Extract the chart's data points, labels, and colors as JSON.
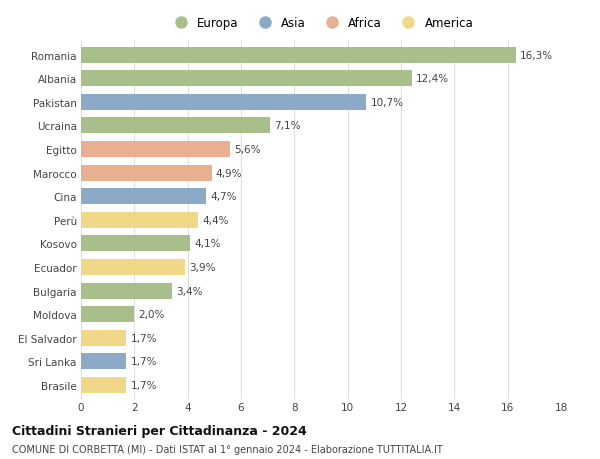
{
  "countries": [
    "Romania",
    "Albania",
    "Pakistan",
    "Ucraina",
    "Egitto",
    "Marocco",
    "Cina",
    "Perù",
    "Kosovo",
    "Ecuador",
    "Bulgaria",
    "Moldova",
    "El Salvador",
    "Sri Lanka",
    "Brasile"
  ],
  "values": [
    16.3,
    12.4,
    10.7,
    7.1,
    5.6,
    4.9,
    4.7,
    4.4,
    4.1,
    3.9,
    3.4,
    2.0,
    1.7,
    1.7,
    1.7
  ],
  "labels": [
    "16,3%",
    "12,4%",
    "10,7%",
    "7,1%",
    "5,6%",
    "4,9%",
    "4,7%",
    "4,4%",
    "4,1%",
    "3,9%",
    "3,4%",
    "2,0%",
    "1,7%",
    "1,7%",
    "1,7%"
  ],
  "continents": [
    "Europa",
    "Europa",
    "Asia",
    "Europa",
    "Africa",
    "Africa",
    "Asia",
    "America",
    "Europa",
    "America",
    "Europa",
    "Europa",
    "America",
    "Asia",
    "America"
  ],
  "continent_colors": {
    "Europa": "#a8bf8c",
    "Asia": "#8baac8",
    "Africa": "#e8b090",
    "America": "#f0d888"
  },
  "legend_items": [
    "Europa",
    "Asia",
    "Africa",
    "America"
  ],
  "legend_colors": [
    "#a8bf8c",
    "#8baac8",
    "#e8b090",
    "#f0d888"
  ],
  "xlim": [
    0,
    18
  ],
  "xticks": [
    0,
    2,
    4,
    6,
    8,
    10,
    12,
    14,
    16,
    18
  ],
  "title": "Cittadini Stranieri per Cittadinanza - 2024",
  "subtitle": "COMUNE DI CORBETTA (MI) - Dati ISTAT al 1° gennaio 2024 - Elaborazione TUTTITALIA.IT",
  "bg_color": "#ffffff",
  "grid_color": "#d8d8d8",
  "bar_height": 0.68,
  "label_fontsize": 7.5,
  "tick_fontsize": 7.5,
  "title_fontsize": 9.0,
  "subtitle_fontsize": 7.0,
  "legend_fontsize": 8.5
}
